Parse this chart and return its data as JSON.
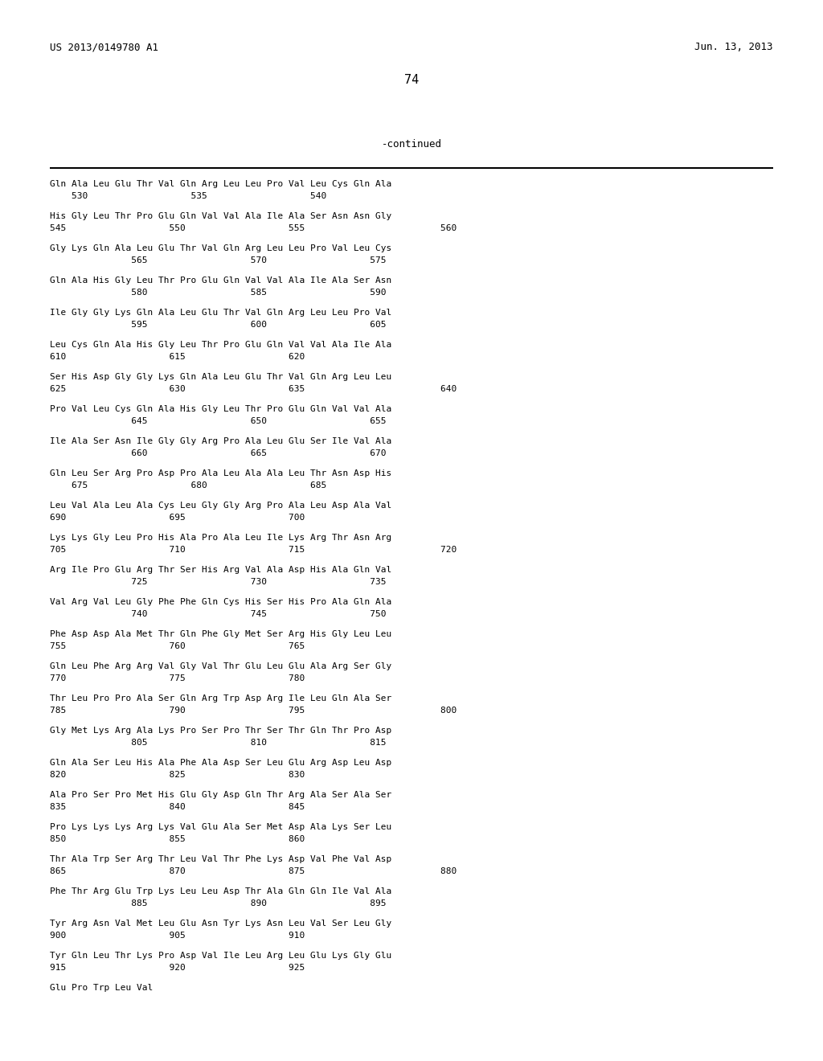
{
  "header_left": "US 2013/0149780 A1",
  "header_right": "Jun. 13, 2013",
  "page_number": "74",
  "continued_label": "-continued",
  "background_color": "#ffffff",
  "text_color": "#000000",
  "content": [
    [
      "Gln Ala Leu Glu Thr Val Gln Arg Leu Leu Pro Val Leu Cys Gln Ala",
      "    530                   535                   540"
    ],
    [
      "His Gly Leu Thr Pro Glu Gln Val Val Ala Ile Ala Ser Asn Asn Gly",
      "545                   550                   555                         560"
    ],
    [
      "Gly Lys Gln Ala Leu Glu Thr Val Gln Arg Leu Leu Pro Val Leu Cys",
      "               565                   570                   575"
    ],
    [
      "Gln Ala His Gly Leu Thr Pro Glu Gln Val Val Ala Ile Ala Ser Asn",
      "               580                   585                   590"
    ],
    [
      "Ile Gly Gly Lys Gln Ala Leu Glu Thr Val Gln Arg Leu Leu Pro Val",
      "               595                   600                   605"
    ],
    [
      "Leu Cys Gln Ala His Gly Leu Thr Pro Glu Gln Val Val Ala Ile Ala",
      "610                   615                   620"
    ],
    [
      "Ser His Asp Gly Gly Lys Gln Ala Leu Glu Thr Val Gln Arg Leu Leu",
      "625                   630                   635                         640"
    ],
    [
      "Pro Val Leu Cys Gln Ala His Gly Leu Thr Pro Glu Gln Val Val Ala",
      "               645                   650                   655"
    ],
    [
      "Ile Ala Ser Asn Ile Gly Gly Arg Pro Ala Leu Glu Ser Ile Val Ala",
      "               660                   665                   670"
    ],
    [
      "Gln Leu Ser Arg Pro Asp Pro Ala Leu Ala Ala Leu Thr Asn Asp His",
      "    675                   680                   685"
    ],
    [
      "Leu Val Ala Leu Ala Cys Leu Gly Gly Arg Pro Ala Leu Asp Ala Val",
      "690                   695                   700"
    ],
    [
      "Lys Lys Gly Leu Pro His Ala Pro Ala Leu Ile Lys Arg Thr Asn Arg",
      "705                   710                   715                         720"
    ],
    [
      "Arg Ile Pro Glu Arg Thr Ser His Arg Val Ala Asp His Ala Gln Val",
      "               725                   730                   735"
    ],
    [
      "Val Arg Val Leu Gly Phe Phe Gln Cys His Ser His Pro Ala Gln Ala",
      "               740                   745                   750"
    ],
    [
      "Phe Asp Asp Ala Met Thr Gln Phe Gly Met Ser Arg His Gly Leu Leu",
      "755                   760                   765"
    ],
    [
      "Gln Leu Phe Arg Arg Val Gly Val Thr Glu Leu Glu Ala Arg Ser Gly",
      "770                   775                   780"
    ],
    [
      "Thr Leu Pro Pro Ala Ser Gln Arg Trp Asp Arg Ile Leu Gln Ala Ser",
      "785                   790                   795                         800"
    ],
    [
      "Gly Met Lys Arg Ala Lys Pro Ser Pro Thr Ser Thr Gln Thr Pro Asp",
      "               805                   810                   815"
    ],
    [
      "Gln Ala Ser Leu His Ala Phe Ala Asp Ser Leu Glu Arg Asp Leu Asp",
      "820                   825                   830"
    ],
    [
      "Ala Pro Ser Pro Met His Glu Gly Asp Gln Thr Arg Ala Ser Ala Ser",
      "835                   840                   845"
    ],
    [
      "Pro Lys Lys Lys Arg Lys Val Glu Ala Ser Met Asp Ala Lys Ser Leu",
      "850                   855                   860"
    ],
    [
      "Thr Ala Trp Ser Arg Thr Leu Val Thr Phe Lys Asp Val Phe Val Asp",
      "865                   870                   875                         880"
    ],
    [
      "Phe Thr Arg Glu Trp Lys Leu Leu Asp Thr Ala Gln Gln Ile Val Ala",
      "               885                   890                   895"
    ],
    [
      "Tyr Arg Asn Val Met Leu Glu Asn Tyr Lys Asn Leu Val Ser Leu Gly",
      "900                   905                   910"
    ],
    [
      "Tyr Gln Leu Thr Lys Pro Asp Val Ile Leu Arg Leu Glu Lys Gly Glu",
      "915                   920                   925"
    ],
    [
      "Glu Pro Trp Leu Val",
      ""
    ]
  ]
}
